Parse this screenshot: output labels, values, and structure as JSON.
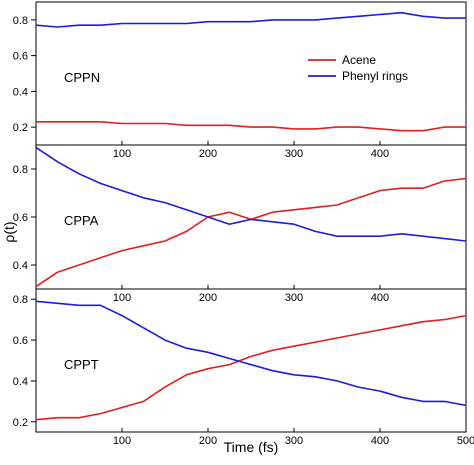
{
  "chart_data": {
    "type": "line",
    "xlabel": "Time (fs)",
    "ylabel": "ρ(t)",
    "xlim": [
      0,
      500
    ],
    "x_ticks": [
      100,
      200,
      300,
      400
    ],
    "x_ticks_bottom": [
      100,
      200,
      300,
      400,
      500
    ],
    "legend": {
      "placement": "top-right of first panel",
      "entries": [
        {
          "name": "Acene",
          "color": "#e02020"
        },
        {
          "name": "Phenyl rings",
          "color": "#1c1cdc"
        }
      ]
    },
    "panels": [
      {
        "label": "CPPN",
        "ylim": [
          0.1,
          0.9
        ],
        "y_ticks": [
          0.2,
          0.4,
          0.6,
          0.8
        ],
        "x": [
          0,
          25,
          50,
          75,
          100,
          125,
          150,
          175,
          200,
          225,
          250,
          275,
          300,
          325,
          350,
          375,
          400,
          425,
          450,
          475,
          500
        ],
        "series": [
          {
            "name": "Acene",
            "color": "#e02020",
            "values": [
              0.23,
              0.23,
              0.23,
              0.23,
              0.22,
              0.22,
              0.22,
              0.21,
              0.21,
              0.21,
              0.2,
              0.2,
              0.19,
              0.19,
              0.2,
              0.2,
              0.19,
              0.18,
              0.18,
              0.2,
              0.2
            ]
          },
          {
            "name": "Phenyl rings",
            "color": "#1c1cdc",
            "values": [
              0.77,
              0.76,
              0.77,
              0.77,
              0.78,
              0.78,
              0.78,
              0.78,
              0.79,
              0.79,
              0.79,
              0.8,
              0.8,
              0.8,
              0.81,
              0.82,
              0.83,
              0.84,
              0.82,
              0.81,
              0.81
            ]
          }
        ]
      },
      {
        "label": "CPPA",
        "ylim": [
          0.3,
          0.9
        ],
        "y_ticks": [
          0.4,
          0.6,
          0.8
        ],
        "x": [
          0,
          25,
          50,
          75,
          100,
          125,
          150,
          175,
          200,
          225,
          250,
          275,
          300,
          325,
          350,
          375,
          400,
          425,
          450,
          475,
          500
        ],
        "series": [
          {
            "name": "Acene",
            "color": "#e02020",
            "values": [
              0.31,
              0.37,
              0.4,
              0.43,
              0.46,
              0.48,
              0.5,
              0.54,
              0.6,
              0.62,
              0.59,
              0.62,
              0.63,
              0.64,
              0.65,
              0.68,
              0.71,
              0.72,
              0.72,
              0.75,
              0.76
            ]
          },
          {
            "name": "Phenyl rings",
            "color": "#1c1cdc",
            "values": [
              0.89,
              0.83,
              0.78,
              0.74,
              0.71,
              0.68,
              0.66,
              0.63,
              0.6,
              0.57,
              0.59,
              0.58,
              0.57,
              0.54,
              0.52,
              0.52,
              0.52,
              0.53,
              0.52,
              0.51,
              0.5
            ]
          }
        ]
      },
      {
        "label": "CPPT",
        "ylim": [
          0.15,
          0.85
        ],
        "y_ticks": [
          0.2,
          0.4,
          0.6,
          0.8
        ],
        "x": [
          0,
          25,
          50,
          75,
          100,
          125,
          150,
          175,
          200,
          225,
          250,
          275,
          300,
          325,
          350,
          375,
          400,
          425,
          450,
          475,
          500
        ],
        "series": [
          {
            "name": "Acene",
            "color": "#e02020",
            "values": [
              0.21,
              0.22,
              0.22,
              0.24,
              0.27,
              0.3,
              0.37,
              0.43,
              0.46,
              0.48,
              0.52,
              0.55,
              0.57,
              0.59,
              0.61,
              0.63,
              0.65,
              0.67,
              0.69,
              0.7,
              0.72
            ]
          },
          {
            "name": "Phenyl rings",
            "color": "#1c1cdc",
            "values": [
              0.79,
              0.78,
              0.77,
              0.77,
              0.72,
              0.66,
              0.6,
              0.56,
              0.54,
              0.51,
              0.48,
              0.45,
              0.43,
              0.42,
              0.4,
              0.37,
              0.35,
              0.32,
              0.3,
              0.3,
              0.28
            ]
          }
        ]
      }
    ]
  }
}
